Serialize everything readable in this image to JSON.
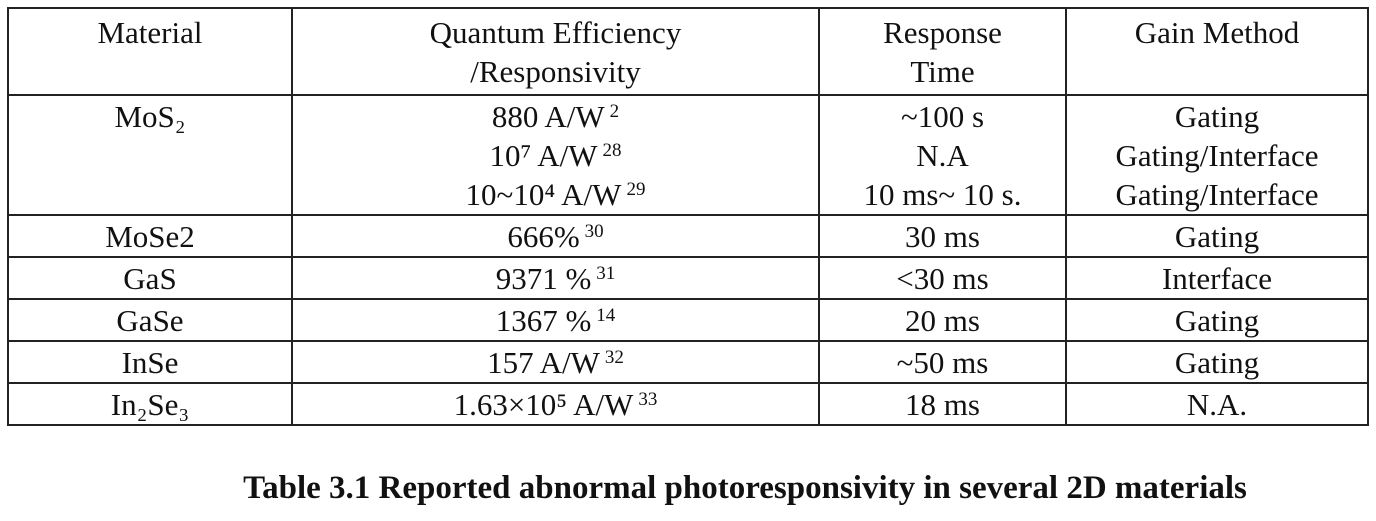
{
  "table": {
    "header": [
      [
        "Material"
      ],
      [
        "Quantum Efficiency",
        "/Responsivity"
      ],
      [
        "Response",
        "Time"
      ],
      [
        "Gain Method"
      ]
    ],
    "rows": [
      {
        "material": "MoS₂",
        "efficiency": [
          {
            "text": "880 A/W",
            "ref": "2"
          },
          {
            "text": "10⁷ A/W",
            "ref": "28"
          },
          {
            "text": "10~10⁴ A/W",
            "ref": "29"
          }
        ],
        "response": [
          "~100 s",
          "N.A",
          "10 ms~ 10 s."
        ],
        "gain": [
          "Gating",
          "Gating/Interface",
          "Gating/Interface"
        ]
      },
      {
        "material": "MoSe2",
        "efficiency": [
          {
            "text": "666%",
            "ref": "30"
          }
        ],
        "response": [
          "30 ms"
        ],
        "gain": [
          "Gating"
        ]
      },
      {
        "material": "GaS",
        "efficiency": [
          {
            "text": "9371 %",
            "ref": "31"
          }
        ],
        "response": [
          "<30 ms"
        ],
        "gain": [
          "Interface"
        ]
      },
      {
        "material": "GaSe",
        "efficiency": [
          {
            "text": "1367 %",
            "ref": "14"
          }
        ],
        "response": [
          "20 ms"
        ],
        "gain": [
          "Gating"
        ]
      },
      {
        "material": "InSe",
        "efficiency": [
          {
            "text": "157 A/W",
            "ref": "32"
          }
        ],
        "response": [
          "~50 ms"
        ],
        "gain": [
          "Gating"
        ]
      },
      {
        "material": "In₂Se₃",
        "efficiency": [
          {
            "text": "1.63×10⁵ A/W",
            "ref": "33"
          }
        ],
        "response": [
          "18 ms"
        ],
        "gain": [
          "N.A."
        ]
      }
    ]
  },
  "caption": "Table 3.1 Reported abnormal photoresponsivity in several 2D materials"
}
